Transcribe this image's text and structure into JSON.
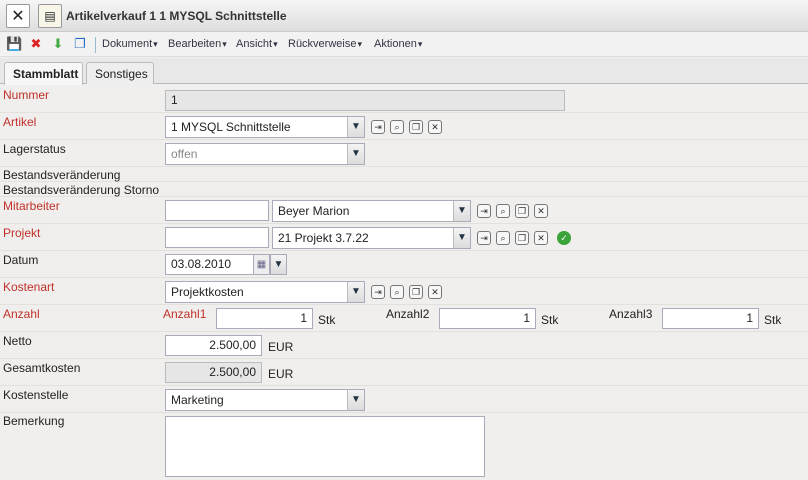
{
  "window": {
    "title": "Artikelverkauf 1 1 MYSQL Schnittstelle",
    "close_icon": "close-icon",
    "doc_icon": "document-icon"
  },
  "toolbar": {
    "icons": [
      "save-icon",
      "delete-icon",
      "export-icon",
      "copy-icon"
    ],
    "menus": [
      "Dokument",
      "Bearbeiten",
      "Ansicht",
      "Rückverweise",
      "Aktionen"
    ]
  },
  "tabs": [
    {
      "label": "Stammblatt",
      "active": true
    },
    {
      "label": "Sonstiges",
      "active": false
    }
  ],
  "form": {
    "nummer": {
      "label": "Nummer",
      "value": "1"
    },
    "artikel": {
      "label": "Artikel",
      "value": "1 MYSQL Schnittstelle"
    },
    "lagerstatus": {
      "label": "Lagerstatus",
      "value": "offen"
    },
    "bestand": {
      "label": "Bestandsveränderung"
    },
    "bestand_storno": {
      "label": "Bestandsveränderung Storno"
    },
    "mitarbeiter": {
      "label": "Mitarbeiter",
      "code": "",
      "value": "Beyer Marion"
    },
    "projekt": {
      "label": "Projekt",
      "code": "",
      "value": "21 Projekt 3.7.22"
    },
    "datum": {
      "label": "Datum",
      "value": "03.08.2010"
    },
    "kostenart": {
      "label": "Kostenart",
      "value": "Projektkosten"
    },
    "anzahl": {
      "label": "Anzahl",
      "a1_label": "Anzahl1",
      "a1": "1",
      "a2_label": "Anzahl2",
      "a2": "1",
      "a3_label": "Anzahl3",
      "a3": "1",
      "unit": "Stk"
    },
    "netto": {
      "label": "Netto",
      "value": "2.500,00",
      "unit": "EUR"
    },
    "gesamtkosten": {
      "label": "Gesamtkosten",
      "value": "2.500,00",
      "unit": "EUR"
    },
    "kostenstelle": {
      "label": "Kostenstelle",
      "value": "Marketing"
    },
    "bemerkung": {
      "label": "Bemerkung",
      "value": ""
    }
  },
  "colors": {
    "required_label": "#c0302a",
    "ok": "#3aa33a"
  }
}
